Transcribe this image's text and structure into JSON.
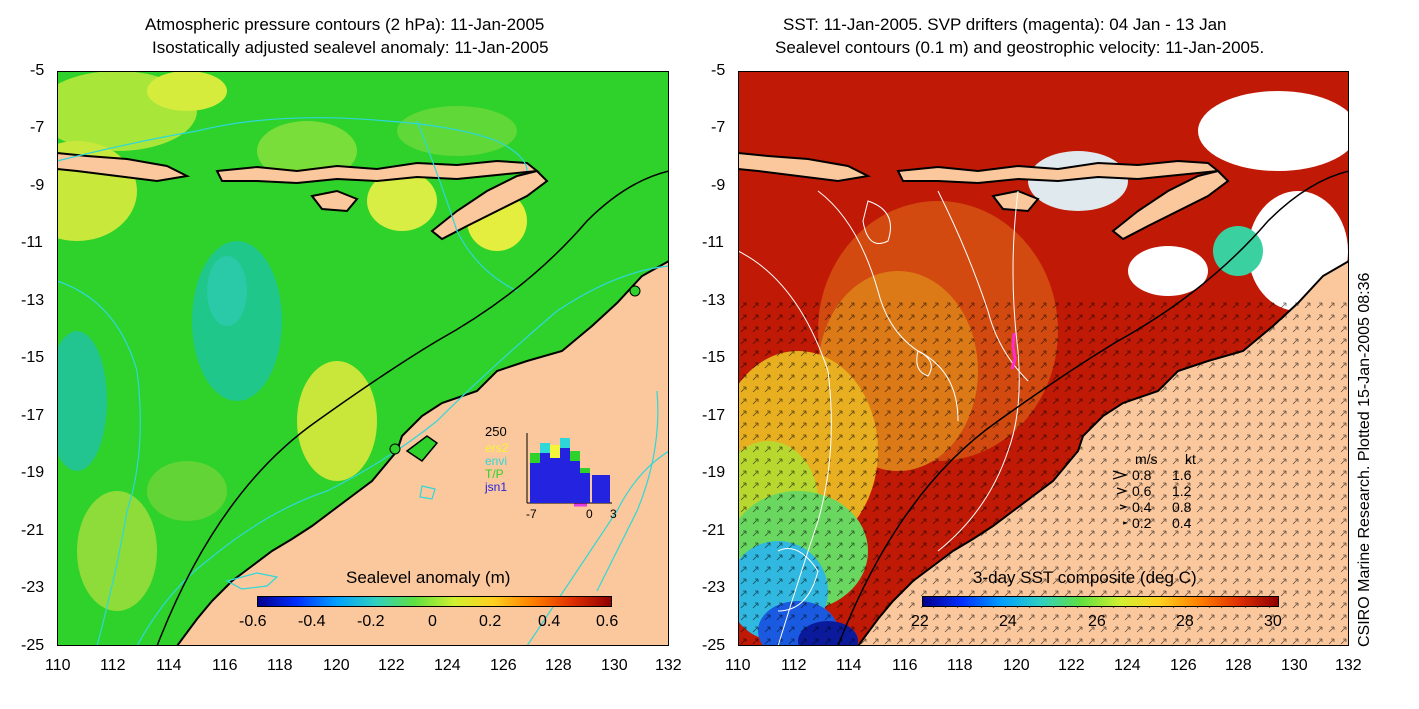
{
  "left_panel": {
    "title_line1": "Atmospheric pressure contours (2 hPa): 11-Jan-2005",
    "title_line2": "Isostatically adjusted sealevel anomaly: 11-Jan-2005",
    "colorbar": {
      "label": "Sealevel anomaly (m)",
      "ticks": [
        "-0.6",
        "-0.4",
        "-0.2",
        "0",
        "0.2",
        "0.4",
        "0.6"
      ]
    },
    "inset": {
      "ymax_label": "250",
      "legend": [
        "ers2",
        "envi",
        "T/P",
        "jsn1"
      ],
      "xticks": [
        "-7",
        "0",
        "3"
      ]
    }
  },
  "right_panel": {
    "title_line1": "SST: 11-Jan-2005. SVP drifters (magenta): 04 Jan - 13 Jan",
    "title_line2": "Sealevel contours (0.1 m) and geostrophic velocity: 11-Jan-2005.",
    "colorbar": {
      "label": "3-day SST composite (deg C)",
      "ticks": [
        "22",
        "24",
        "26",
        "28",
        "30"
      ]
    },
    "velocity_legend": {
      "header_ms": "m/s",
      "header_kt": "kt",
      "rows": [
        {
          "ms": "0.8",
          "kt": "1.6"
        },
        {
          "ms": "0.6",
          "kt": "1.2"
        },
        {
          "ms": "0.4",
          "kt": "0.8"
        },
        {
          "ms": "0.2",
          "kt": "0.4"
        }
      ]
    }
  },
  "axes": {
    "lat_ticks": [
      "-5",
      "-7",
      "-9",
      "-11",
      "-13",
      "-15",
      "-17",
      "-19",
      "-21",
      "-23",
      "-25"
    ],
    "lon_ticks": [
      "110",
      "112",
      "114",
      "116",
      "118",
      "120",
      "122",
      "124",
      "126",
      "128",
      "130",
      "132"
    ]
  },
  "credit": "CSIRO Marine Research. Plotted 15-Jan-2005 08:36",
  "colors": {
    "land": "#fbc79c",
    "ocean_left": "#2fd22a",
    "ocean_right": "#c01a06",
    "contour_left": "#2ed8d8",
    "contour_right": "#ffffff"
  }
}
